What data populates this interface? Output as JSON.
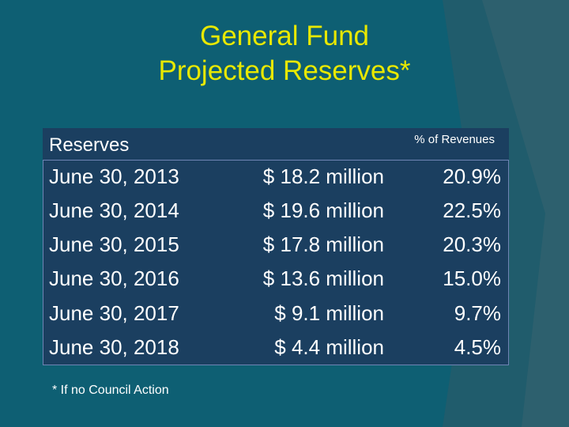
{
  "title_line1": "General Fund",
  "title_line2": "Projected Reserves*",
  "table": {
    "header_left": "Reserves",
    "header_right": "% of Revenues",
    "rows": [
      {
        "date": "June 30, 2013",
        "amount": "$ 18.2 million",
        "pct": "20.9%"
      },
      {
        "date": "June 30, 2014",
        "amount": "$ 19.6 million",
        "pct": "22.5%"
      },
      {
        "date": "June 30, 2015",
        "amount": "$ 17.8 million",
        "pct": "20.3%"
      },
      {
        "date": "June 30, 2016",
        "amount": "$ 13.6 million",
        "pct": "15.0%"
      },
      {
        "date": "June 30, 2017",
        "amount": "$ 9.1 million",
        "pct": "9.7%"
      },
      {
        "date": "June 30, 2018",
        "amount": "$ 4.4 million",
        "pct": "4.5%"
      }
    ]
  },
  "footnote": "* If no Council Action",
  "colors": {
    "background": "#0e5f73",
    "title": "#e8e800",
    "table": "#1b3f60",
    "text": "#ffffff"
  }
}
